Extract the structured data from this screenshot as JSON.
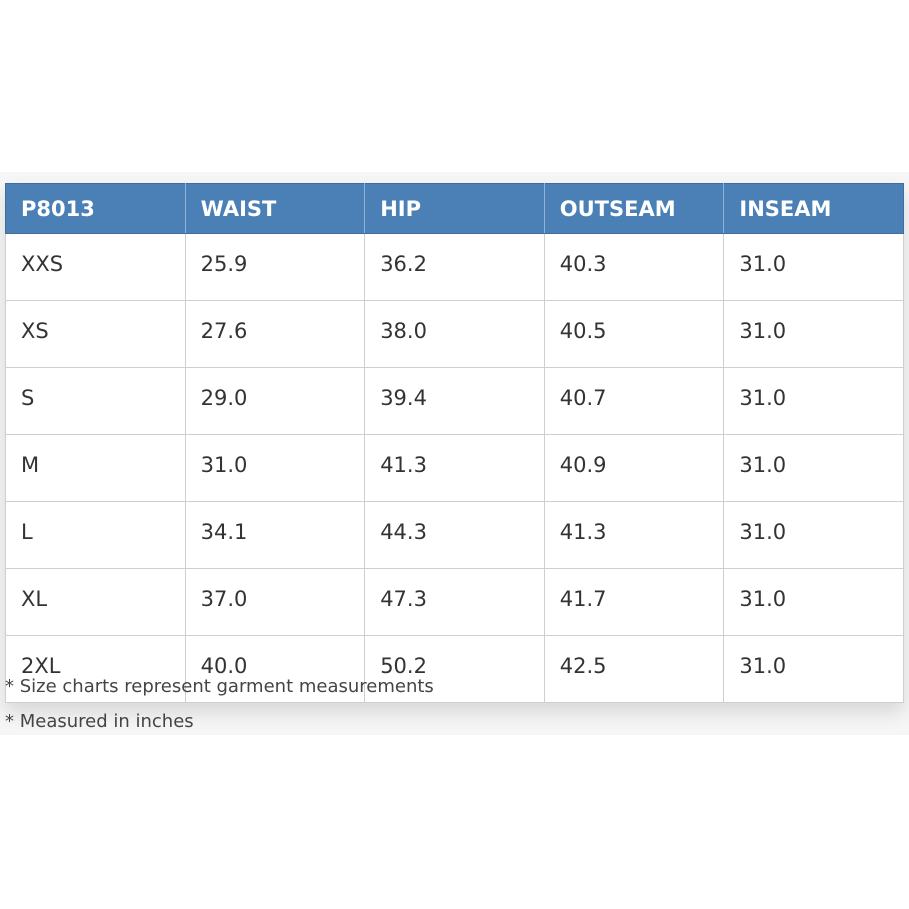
{
  "table": {
    "header": [
      "P8013",
      "WAIST",
      "HIP",
      "OUTSEAM",
      "INSEAM"
    ],
    "rows": [
      [
        "XXS",
        "25.9",
        "36.2",
        "40.3",
        "31.0"
      ],
      [
        "XS",
        "27.6",
        "38.0",
        "40.5",
        "31.0"
      ],
      [
        "S",
        "29.0",
        "39.4",
        "40.7",
        "31.0"
      ],
      [
        "M",
        "31.0",
        "41.3",
        "40.9",
        "31.0"
      ],
      [
        "L",
        "34.1",
        "44.3",
        "41.3",
        "31.0"
      ],
      [
        "XL",
        "37.0",
        "47.3",
        "41.7",
        "31.0"
      ],
      [
        "2XL",
        "40.0",
        "50.2",
        "42.5",
        "31.0"
      ]
    ]
  },
  "notes": [
    "* Size charts represent garment measurements",
    "* Measured in inches"
  ]
}
